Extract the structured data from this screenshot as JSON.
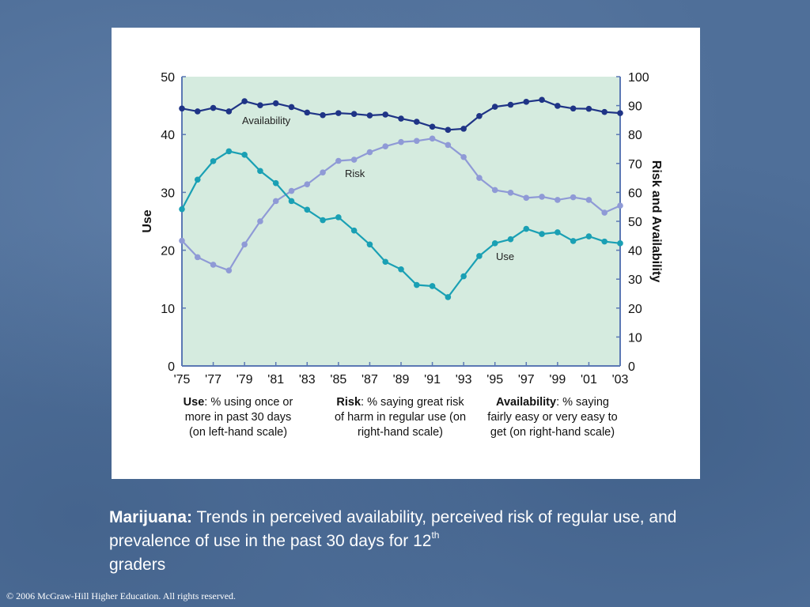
{
  "chart_data": {
    "type": "line",
    "x": [
      "1975",
      "1976",
      "1977",
      "1978",
      "1979",
      "1980",
      "1981",
      "1982",
      "1983",
      "1984",
      "1985",
      "1986",
      "1987",
      "1988",
      "1989",
      "1990",
      "1991",
      "1992",
      "1993",
      "1994",
      "1995",
      "1996",
      "1997",
      "1998",
      "1999",
      "2000",
      "2001",
      "2002",
      "2003"
    ],
    "x_tick_labels": [
      "'75",
      "'77",
      "'79",
      "'81",
      "'83",
      "'85",
      "'87",
      "'89",
      "'91",
      "'93",
      "'95",
      "'97",
      "'99",
      "'01",
      "'03"
    ],
    "left_axis": {
      "label": "Use",
      "ylim": [
        0,
        50
      ],
      "ticks": [
        "0",
        "10",
        "20",
        "30",
        "40",
        "50"
      ]
    },
    "right_axis": {
      "label": "Risk and Availability",
      "ylim": [
        0,
        100
      ],
      "ticks": [
        "0",
        "10",
        "20",
        "30",
        "40",
        "50",
        "60",
        "70",
        "80",
        "90",
        "100"
      ]
    },
    "series": [
      {
        "name": "Availability",
        "axis": "right",
        "color": "#1f3486",
        "values": [
          89.0,
          88.0,
          89.2,
          88.0,
          91.5,
          90.1,
          90.8,
          89.5,
          87.6,
          86.7,
          87.4,
          87.1,
          86.6,
          86.9,
          85.5,
          84.4,
          82.7,
          81.6,
          82.0,
          86.4,
          89.6,
          90.3,
          91.3,
          92.0,
          89.9,
          89.0,
          88.9,
          87.8,
          87.4
        ]
      },
      {
        "name": "Risk",
        "axis": "right",
        "color": "#8f9ad6",
        "values": [
          43.3,
          37.6,
          35.0,
          33.0,
          42.0,
          50.0,
          57.0,
          60.5,
          62.8,
          66.9,
          70.9,
          71.3,
          73.9,
          75.9,
          77.4,
          77.8,
          78.6,
          76.4,
          72.2,
          65.0,
          60.8,
          59.9,
          58.1,
          58.5,
          57.4,
          58.3,
          57.4,
          53.0,
          55.4
        ]
      },
      {
        "name": "Use",
        "axis": "left",
        "color": "#1aa0b4",
        "values": [
          27.1,
          32.2,
          35.4,
          37.1,
          36.5,
          33.7,
          31.6,
          28.5,
          27.0,
          25.2,
          25.7,
          23.4,
          21.0,
          18.0,
          16.7,
          14.0,
          13.8,
          11.9,
          15.5,
          19.0,
          21.2,
          21.9,
          23.7,
          22.8,
          23.1,
          21.6,
          22.4,
          21.5,
          21.2
        ]
      }
    ],
    "annotations": [
      "Availability",
      "Risk",
      "Use"
    ],
    "grid": false,
    "plot_background": "#d5ebdf"
  },
  "legend": {
    "use": {
      "term": "Use",
      "text": ": % using once or more in past 30 days (on left-hand scale)"
    },
    "risk": {
      "term": "Risk",
      "text": ": % saying great risk of harm in regular use (on right-hand scale)"
    },
    "availability": {
      "term": "Availability",
      "text": ": % saying fairly easy or very easy to get (on right-hand scale)"
    }
  },
  "caption": {
    "lead": "Marijuana:",
    "text": " Trends in perceived availability, perceived risk of regular use, and prevalence of use in the past 30 days for 12",
    "superscript": "th",
    "tail": " graders"
  },
  "copyright": "© 2006 McGraw-Hill Higher Education. All rights reserved.",
  "colors": {
    "background": "#4f6f99",
    "panel": "#ffffff",
    "axis": "#5b78b4"
  }
}
